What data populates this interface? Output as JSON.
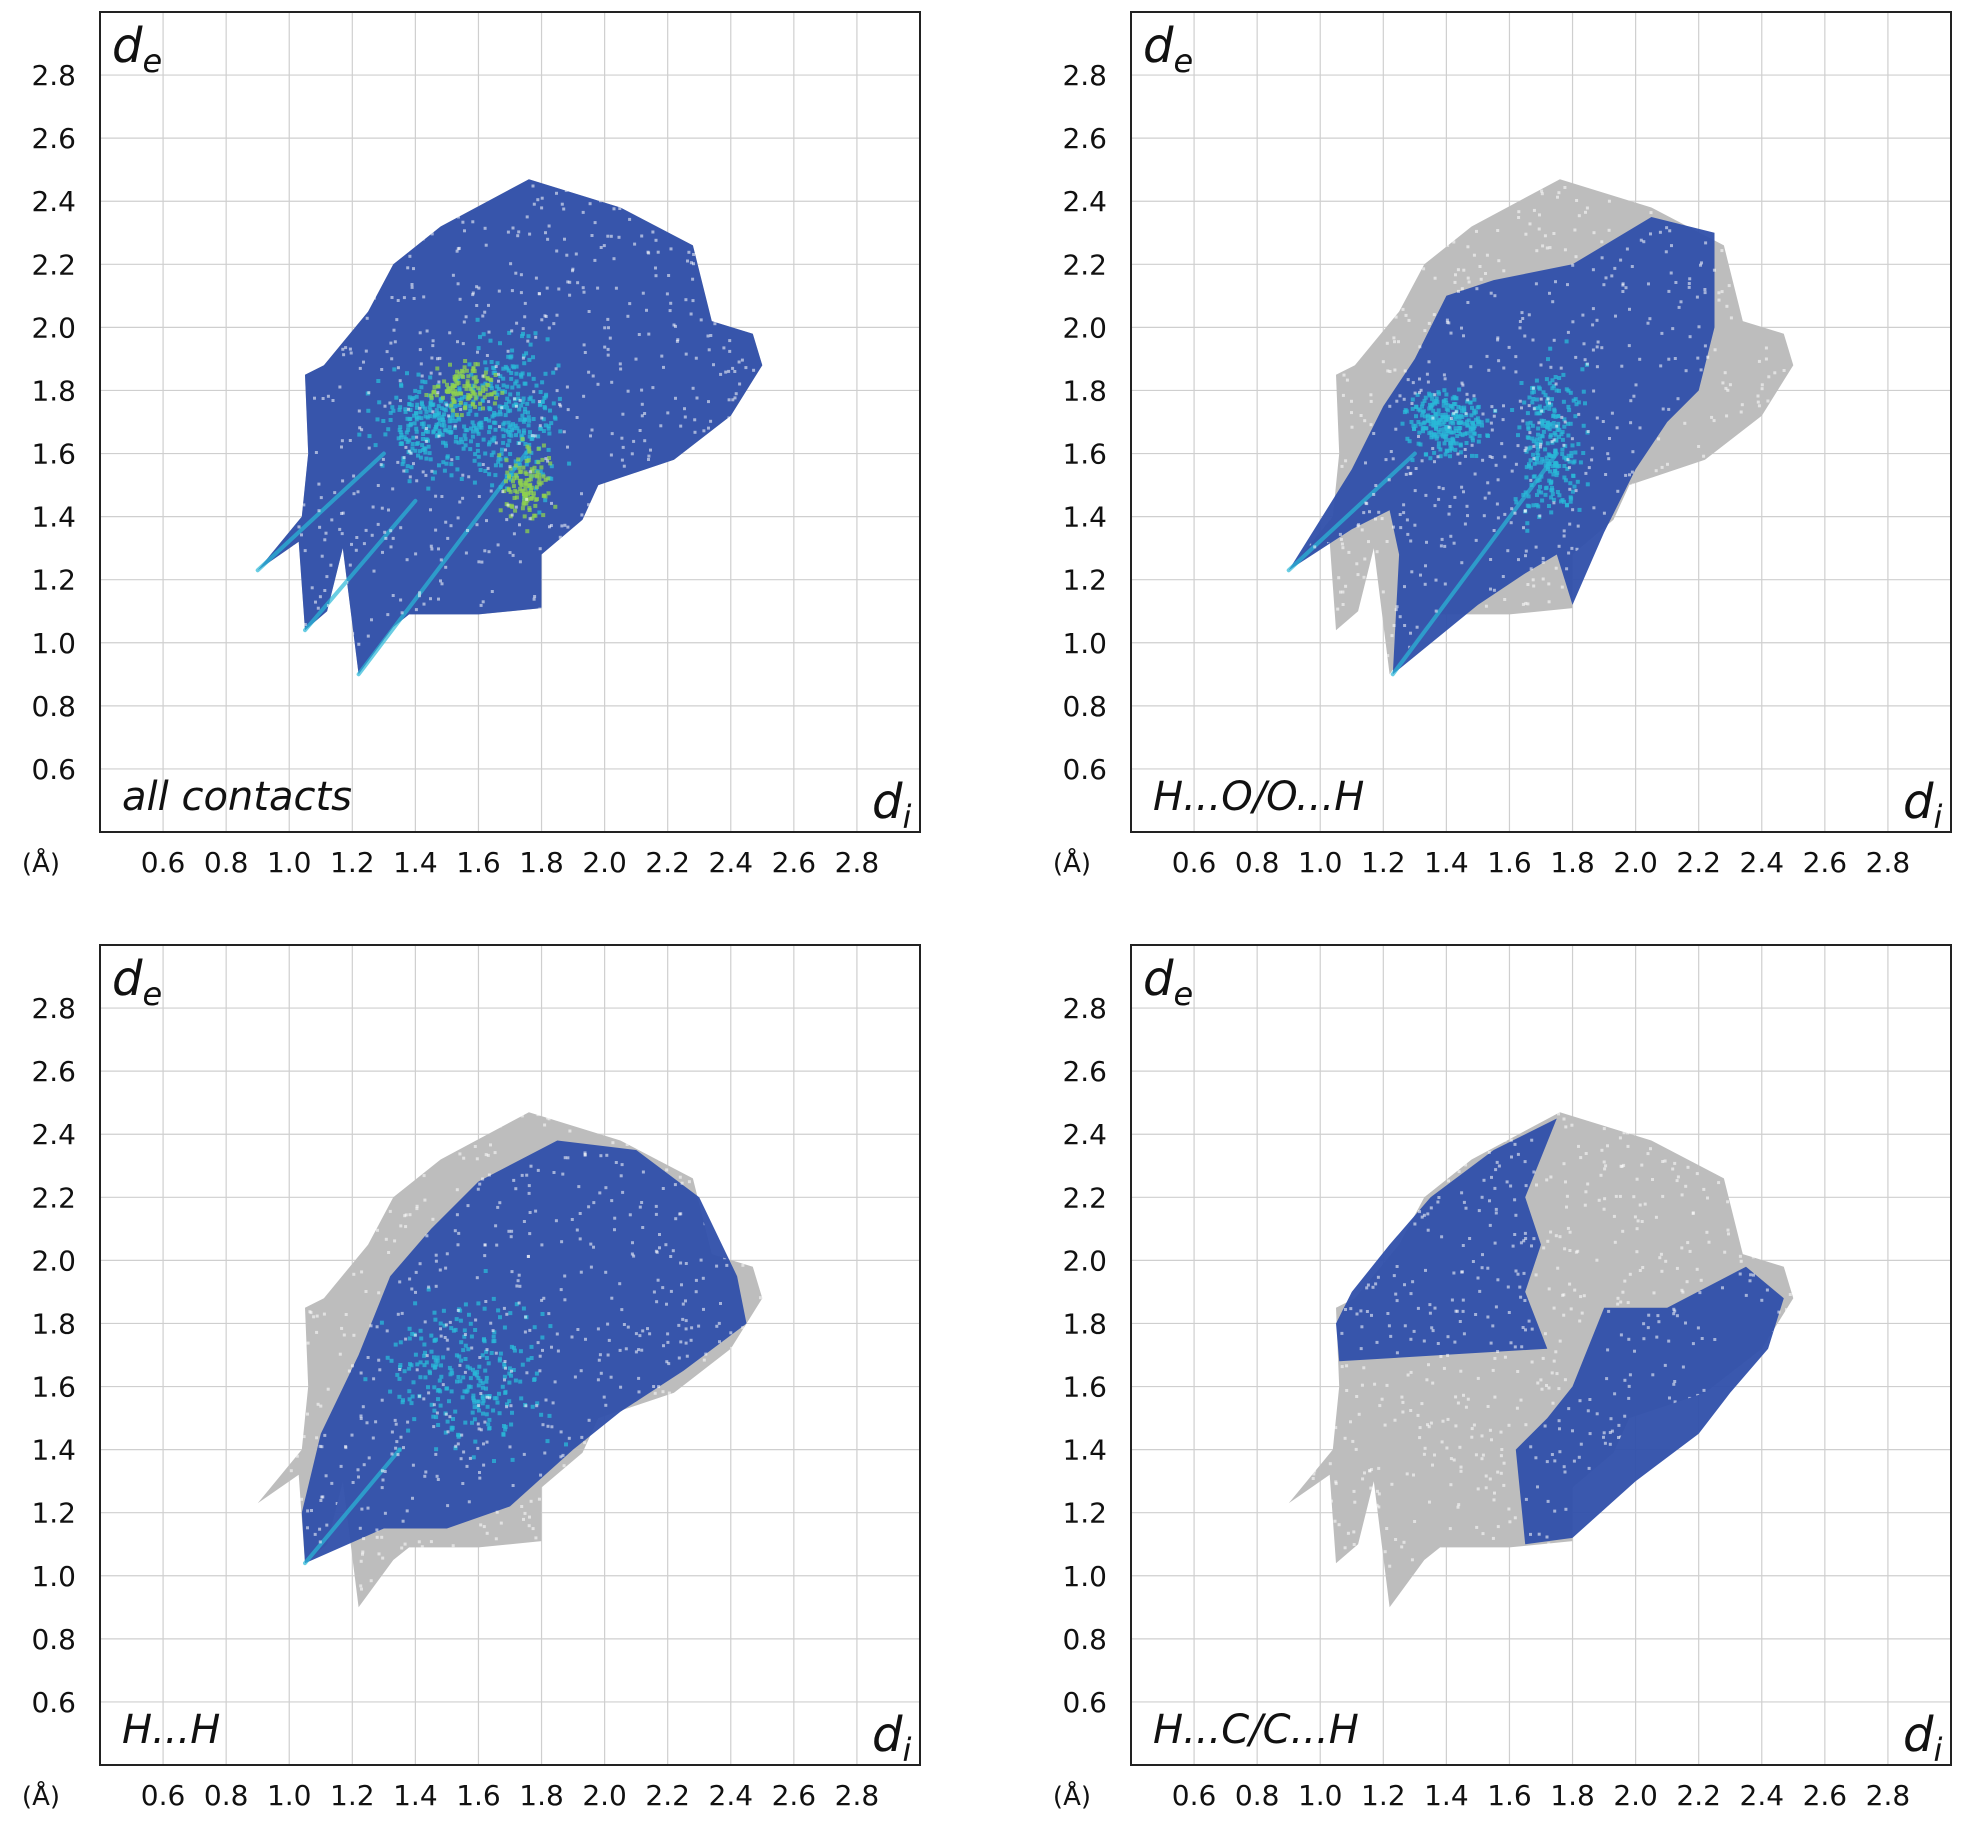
{
  "figure": {
    "tick_values": [
      0.6,
      0.8,
      1.0,
      1.2,
      1.4,
      1.6,
      1.8,
      2.0,
      2.2,
      2.4,
      2.6,
      2.8
    ],
    "axis_unit_label": "(Å)",
    "axis_y_symbol": "d",
    "axis_y_subscript": "e",
    "axis_x_symbol": "d",
    "axis_x_subscript": "i"
  },
  "chart_data": [
    {
      "type": "heatmap",
      "title": "all contacts",
      "xlabel": "di",
      "ylabel": "de",
      "unit": "(Å)",
      "xlim": [
        0.4,
        3.0
      ],
      "ylim": [
        0.4,
        3.0
      ],
      "grid": true,
      "xticks": [
        0.6,
        0.8,
        1.0,
        1.2,
        1.4,
        1.6,
        1.8,
        2.0,
        2.2,
        2.4,
        2.6,
        2.8
      ],
      "yticks": [
        0.6,
        0.8,
        1.0,
        1.2,
        1.4,
        1.6,
        1.8,
        2.0,
        2.2,
        2.4,
        2.6,
        2.8
      ],
      "colors": {
        "background_region": "#bdbdbd",
        "highlight": "#2f4faa",
        "dense": "#2ab9d8",
        "densest": "#8fd14f"
      },
      "envelope": [
        [
          0.9,
          1.23
        ],
        [
          1.03,
          1.32
        ],
        [
          1.05,
          1.04
        ],
        [
          1.12,
          1.1
        ],
        [
          1.17,
          1.3
        ],
        [
          1.22,
          0.9
        ],
        [
          1.33,
          1.05
        ],
        [
          1.38,
          1.09
        ],
        [
          1.6,
          1.09
        ],
        [
          1.8,
          1.11
        ],
        [
          1.8,
          1.28
        ],
        [
          1.93,
          1.39
        ],
        [
          1.98,
          1.5
        ],
        [
          2.22,
          1.58
        ],
        [
          2.4,
          1.72
        ],
        [
          2.5,
          1.88
        ],
        [
          2.47,
          1.98
        ],
        [
          2.34,
          2.02
        ],
        [
          2.28,
          2.26
        ],
        [
          2.05,
          2.38
        ],
        [
          1.76,
          2.47
        ],
        [
          1.48,
          2.32
        ],
        [
          1.33,
          2.2
        ],
        [
          1.25,
          2.05
        ],
        [
          1.11,
          1.88
        ],
        [
          1.05,
          1.85
        ],
        [
          1.06,
          1.6
        ],
        [
          1.04,
          1.4
        ]
      ],
      "highlight_region": [
        [
          0.9,
          1.23
        ],
        [
          1.03,
          1.32
        ],
        [
          1.05,
          1.04
        ],
        [
          1.12,
          1.1
        ],
        [
          1.17,
          1.3
        ],
        [
          1.22,
          0.9
        ],
        [
          1.33,
          1.05
        ],
        [
          1.38,
          1.09
        ],
        [
          1.6,
          1.09
        ],
        [
          1.8,
          1.11
        ],
        [
          1.8,
          1.28
        ],
        [
          1.93,
          1.39
        ],
        [
          1.98,
          1.5
        ],
        [
          2.22,
          1.58
        ],
        [
          2.4,
          1.72
        ],
        [
          2.5,
          1.88
        ],
        [
          2.47,
          1.98
        ],
        [
          2.34,
          2.02
        ],
        [
          2.28,
          2.26
        ],
        [
          2.05,
          2.38
        ],
        [
          1.76,
          2.47
        ],
        [
          1.48,
          2.32
        ],
        [
          1.33,
          2.2
        ],
        [
          1.25,
          2.05
        ],
        [
          1.11,
          1.88
        ],
        [
          1.05,
          1.85
        ],
        [
          1.06,
          1.6
        ],
        [
          1.04,
          1.4
        ]
      ],
      "density_hotspots": [
        {
          "center": [
            1.45,
            1.7
          ],
          "spread": [
            0.15,
            0.12
          ],
          "level": "dense"
        },
        {
          "center": [
            1.7,
            1.72
          ],
          "spread": [
            0.12,
            0.2
          ],
          "level": "dense"
        },
        {
          "center": [
            1.75,
            1.5
          ],
          "spread": [
            0.06,
            0.1
          ],
          "level": "densest"
        },
        {
          "center": [
            1.55,
            1.82
          ],
          "spread": [
            0.08,
            0.06
          ],
          "level": "densest"
        }
      ],
      "spikes": [
        {
          "tip": [
            0.9,
            1.23
          ],
          "base": [
            1.3,
            1.6
          ]
        },
        {
          "tip": [
            1.05,
            1.04
          ],
          "base": [
            1.4,
            1.45
          ]
        },
        {
          "tip": [
            1.22,
            0.9
          ],
          "base": [
            1.75,
            1.6
          ]
        }
      ]
    },
    {
      "type": "heatmap",
      "title": "H...O/O...H",
      "xlabel": "di",
      "ylabel": "de",
      "unit": "(Å)",
      "xlim": [
        0.4,
        3.0
      ],
      "ylim": [
        0.4,
        3.0
      ],
      "grid": true,
      "xticks": [
        0.6,
        0.8,
        1.0,
        1.2,
        1.4,
        1.6,
        1.8,
        2.0,
        2.2,
        2.4,
        2.6,
        2.8
      ],
      "yticks": [
        0.6,
        0.8,
        1.0,
        1.2,
        1.4,
        1.6,
        1.8,
        2.0,
        2.2,
        2.4,
        2.6,
        2.8
      ],
      "colors": {
        "background_region": "#bdbdbd",
        "highlight": "#2f4faa",
        "dense": "#2ab9d8",
        "densest": "#8fd14f"
      },
      "envelope": [
        [
          0.9,
          1.23
        ],
        [
          1.03,
          1.32
        ],
        [
          1.05,
          1.04
        ],
        [
          1.12,
          1.1
        ],
        [
          1.17,
          1.3
        ],
        [
          1.22,
          0.9
        ],
        [
          1.33,
          1.05
        ],
        [
          1.38,
          1.09
        ],
        [
          1.6,
          1.09
        ],
        [
          1.8,
          1.11
        ],
        [
          1.8,
          1.28
        ],
        [
          1.93,
          1.39
        ],
        [
          1.98,
          1.5
        ],
        [
          2.22,
          1.58
        ],
        [
          2.4,
          1.72
        ],
        [
          2.5,
          1.88
        ],
        [
          2.47,
          1.98
        ],
        [
          2.34,
          2.02
        ],
        [
          2.28,
          2.26
        ],
        [
          2.05,
          2.38
        ],
        [
          1.76,
          2.47
        ],
        [
          1.48,
          2.32
        ],
        [
          1.33,
          2.2
        ],
        [
          1.25,
          2.05
        ],
        [
          1.11,
          1.88
        ],
        [
          1.05,
          1.85
        ],
        [
          1.06,
          1.6
        ],
        [
          1.04,
          1.4
        ]
      ],
      "highlight_region": [
        [
          0.9,
          1.23
        ],
        [
          1.1,
          1.36
        ],
        [
          1.22,
          1.42
        ],
        [
          1.25,
          1.28
        ],
        [
          1.23,
          0.9
        ],
        [
          1.5,
          1.12
        ],
        [
          1.65,
          1.22
        ],
        [
          1.75,
          1.28
        ],
        [
          1.8,
          1.12
        ],
        [
          1.9,
          1.35
        ],
        [
          2.0,
          1.55
        ],
        [
          2.1,
          1.7
        ],
        [
          2.2,
          1.8
        ],
        [
          2.25,
          2.0
        ],
        [
          2.25,
          2.3
        ],
        [
          2.05,
          2.35
        ],
        [
          1.8,
          2.2
        ],
        [
          1.55,
          2.15
        ],
        [
          1.4,
          2.1
        ],
        [
          1.3,
          1.9
        ],
        [
          1.2,
          1.75
        ],
        [
          1.1,
          1.55
        ]
      ],
      "density_hotspots": [
        {
          "center": [
            1.72,
            1.65
          ],
          "spread": [
            0.08,
            0.2
          ],
          "level": "dense"
        },
        {
          "center": [
            1.4,
            1.7
          ],
          "spread": [
            0.1,
            0.08
          ],
          "level": "dense"
        }
      ],
      "spikes": [
        {
          "tip": [
            0.9,
            1.23
          ],
          "base": [
            1.3,
            1.6
          ]
        },
        {
          "tip": [
            1.23,
            0.9
          ],
          "base": [
            1.75,
            1.6
          ]
        }
      ]
    },
    {
      "type": "heatmap",
      "title": "H...H",
      "xlabel": "di",
      "ylabel": "de",
      "unit": "(Å)",
      "xlim": [
        0.4,
        3.0
      ],
      "ylim": [
        0.4,
        3.0
      ],
      "grid": true,
      "xticks": [
        0.6,
        0.8,
        1.0,
        1.2,
        1.4,
        1.6,
        1.8,
        2.0,
        2.2,
        2.4,
        2.6,
        2.8
      ],
      "yticks": [
        0.6,
        0.8,
        1.0,
        1.2,
        1.4,
        1.6,
        1.8,
        2.0,
        2.2,
        2.4,
        2.6,
        2.8
      ],
      "colors": {
        "background_region": "#bdbdbd",
        "highlight": "#2f4faa",
        "dense": "#2ab9d8",
        "densest": "#8fd14f"
      },
      "envelope": [
        [
          0.9,
          1.23
        ],
        [
          1.03,
          1.32
        ],
        [
          1.05,
          1.04
        ],
        [
          1.12,
          1.1
        ],
        [
          1.17,
          1.3
        ],
        [
          1.22,
          0.9
        ],
        [
          1.33,
          1.05
        ],
        [
          1.38,
          1.09
        ],
        [
          1.6,
          1.09
        ],
        [
          1.8,
          1.11
        ],
        [
          1.8,
          1.28
        ],
        [
          1.93,
          1.39
        ],
        [
          1.98,
          1.5
        ],
        [
          2.22,
          1.58
        ],
        [
          2.4,
          1.72
        ],
        [
          2.5,
          1.88
        ],
        [
          2.47,
          1.98
        ],
        [
          2.34,
          2.02
        ],
        [
          2.28,
          2.26
        ],
        [
          2.05,
          2.38
        ],
        [
          1.76,
          2.47
        ],
        [
          1.48,
          2.32
        ],
        [
          1.33,
          2.2
        ],
        [
          1.25,
          2.05
        ],
        [
          1.11,
          1.88
        ],
        [
          1.05,
          1.85
        ],
        [
          1.06,
          1.6
        ],
        [
          1.04,
          1.4
        ]
      ],
      "highlight_region": [
        [
          1.05,
          1.04
        ],
        [
          1.3,
          1.15
        ],
        [
          1.5,
          1.15
        ],
        [
          1.7,
          1.22
        ],
        [
          1.9,
          1.4
        ],
        [
          2.05,
          1.52
        ],
        [
          2.25,
          1.65
        ],
        [
          2.45,
          1.8
        ],
        [
          2.42,
          1.95
        ],
        [
          2.3,
          2.2
        ],
        [
          2.1,
          2.35
        ],
        [
          1.85,
          2.38
        ],
        [
          1.6,
          2.25
        ],
        [
          1.45,
          2.1
        ],
        [
          1.32,
          1.95
        ],
        [
          1.22,
          1.7
        ],
        [
          1.1,
          1.45
        ],
        [
          1.04,
          1.2
        ]
      ],
      "density_hotspots": [
        {
          "center": [
            1.55,
            1.65
          ],
          "spread": [
            0.2,
            0.2
          ],
          "level": "dense"
        }
      ],
      "spikes": [
        {
          "tip": [
            1.05,
            1.04
          ],
          "base": [
            1.35,
            1.4
          ]
        }
      ]
    },
    {
      "type": "heatmap",
      "title": "H...C/C...H",
      "xlabel": "di",
      "ylabel": "de",
      "unit": "(Å)",
      "xlim": [
        0.4,
        3.0
      ],
      "ylim": [
        0.4,
        3.0
      ],
      "grid": true,
      "xticks": [
        0.6,
        0.8,
        1.0,
        1.2,
        1.4,
        1.6,
        1.8,
        2.0,
        2.2,
        2.4,
        2.6,
        2.8
      ],
      "yticks": [
        0.6,
        0.8,
        1.0,
        1.2,
        1.4,
        1.6,
        1.8,
        2.0,
        2.2,
        2.4,
        2.6,
        2.8
      ],
      "colors": {
        "background_region": "#bdbdbd",
        "highlight": "#2f4faa",
        "dense": "#2ab9d8",
        "densest": "#8fd14f"
      },
      "envelope": [
        [
          0.9,
          1.23
        ],
        [
          1.03,
          1.32
        ],
        [
          1.05,
          1.04
        ],
        [
          1.12,
          1.1
        ],
        [
          1.17,
          1.3
        ],
        [
          1.22,
          0.9
        ],
        [
          1.33,
          1.05
        ],
        [
          1.38,
          1.09
        ],
        [
          1.6,
          1.09
        ],
        [
          1.8,
          1.11
        ],
        [
          1.8,
          1.28
        ],
        [
          1.93,
          1.39
        ],
        [
          1.98,
          1.5
        ],
        [
          2.22,
          1.58
        ],
        [
          2.4,
          1.72
        ],
        [
          2.5,
          1.88
        ],
        [
          2.47,
          1.98
        ],
        [
          2.34,
          2.02
        ],
        [
          2.28,
          2.26
        ],
        [
          2.05,
          2.38
        ],
        [
          1.76,
          2.47
        ],
        [
          1.48,
          2.32
        ],
        [
          1.33,
          2.2
        ],
        [
          1.25,
          2.05
        ],
        [
          1.11,
          1.88
        ],
        [
          1.05,
          1.85
        ],
        [
          1.06,
          1.6
        ],
        [
          1.04,
          1.4
        ]
      ],
      "highlight_region": [
        [
          1.06,
          1.68
        ],
        [
          1.72,
          1.72
        ],
        [
          1.65,
          1.9
        ],
        [
          1.7,
          2.05
        ],
        [
          1.65,
          2.2
        ],
        [
          1.75,
          2.45
        ],
        [
          1.55,
          2.35
        ],
        [
          1.35,
          2.2
        ],
        [
          1.22,
          2.05
        ],
        [
          1.1,
          1.9
        ],
        [
          1.05,
          1.8
        ]
      ],
      "highlight_region_2": [
        [
          1.65,
          1.1
        ],
        [
          1.8,
          1.12
        ],
        [
          2.0,
          1.3
        ],
        [
          2.2,
          1.45
        ],
        [
          2.3,
          1.58
        ],
        [
          2.42,
          1.72
        ],
        [
          2.47,
          1.88
        ],
        [
          2.35,
          1.98
        ],
        [
          2.1,
          1.85
        ],
        [
          1.9,
          1.85
        ],
        [
          1.8,
          1.6
        ],
        [
          1.72,
          1.5
        ],
        [
          1.62,
          1.4
        ]
      ],
      "density_hotspots": [],
      "spikes": []
    }
  ],
  "panels": [
    {
      "label": "all contacts"
    },
    {
      "label": "H...O/O...H"
    },
    {
      "label": "H...H"
    },
    {
      "label": "H...C/C...H"
    }
  ]
}
